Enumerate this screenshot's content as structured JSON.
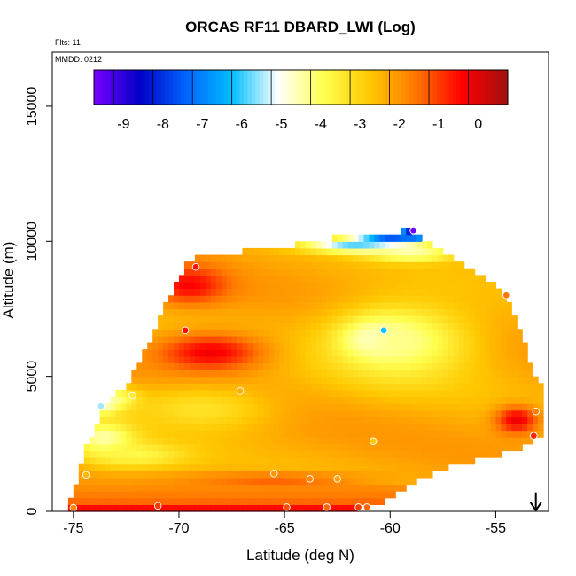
{
  "chart_data": {
    "type": "heatmap",
    "title": "ORCAS RF11 DBARD_LWI (Log)",
    "annotations": {
      "flights": "Flts: 11",
      "date": "MMDD: 0212"
    },
    "xlabel": "Latitude (deg N)",
    "ylabel": "Altitude (m)",
    "xlim": [
      -76,
      -52.5
    ],
    "ylim": [
      0,
      17000
    ],
    "x_ticks": [
      -75,
      -70,
      -65,
      -60,
      -55
    ],
    "x_tick_labels": [
      "-75",
      "-70",
      "-65",
      "-60",
      "-55"
    ],
    "y_ticks": [
      0,
      5000,
      10000,
      15000
    ],
    "y_tick_labels": [
      "0",
      "5000",
      "10000",
      "15000"
    ],
    "colorbar": {
      "range": [
        -9.75,
        0.75
      ],
      "ticks": [
        -9,
        -8,
        -7,
        -6,
        -5,
        -4,
        -3,
        -2,
        -1,
        0
      ],
      "tick_labels": [
        "-9",
        "-8",
        "-7",
        "-6",
        "-5",
        "-4",
        "-3",
        "-2",
        "-1",
        "0"
      ],
      "colors": [
        "#7a00ff",
        "#0000c8",
        "#0064ff",
        "#00beff",
        "#ffffff",
        "#ffff50",
        "#ffc800",
        "#ff7800",
        "#ff0000",
        "#a01010"
      ]
    },
    "field_columns": [
      {
        "x": -75.0,
        "bottom": 0,
        "top": 300
      },
      {
        "x": -74.5,
        "bottom": 0,
        "top": 2200
      },
      {
        "x": -74.0,
        "bottom": 0,
        "top": 2900
      },
      {
        "x": -73.5,
        "bottom": 0,
        "top": 3900
      },
      {
        "x": -73.0,
        "bottom": 0,
        "top": 4200
      },
      {
        "x": -72.5,
        "bottom": 0,
        "top": 4500
      },
      {
        "x": -72.0,
        "bottom": 0,
        "top": 5300
      },
      {
        "x": -71.5,
        "bottom": 0,
        "top": 6000
      },
      {
        "x": -71.0,
        "bottom": 0,
        "top": 7000
      },
      {
        "x": -70.5,
        "bottom": 0,
        "top": 7800
      },
      {
        "x": -70.0,
        "bottom": 0,
        "top": 8500
      },
      {
        "x": -69.5,
        "bottom": 0,
        "top": 9200
      },
      {
        "x": -69.0,
        "bottom": 0,
        "top": 9400
      },
      {
        "x": -68.0,
        "bottom": 0,
        "top": 9500
      },
      {
        "x": -67.0,
        "bottom": 0,
        "top": 9500
      },
      {
        "x": -66.0,
        "bottom": 0,
        "top": 9600
      },
      {
        "x": -65.0,
        "bottom": 0,
        "top": 9700
      },
      {
        "x": -64.0,
        "bottom": 100,
        "top": 9800
      },
      {
        "x": -63.0,
        "bottom": 100,
        "top": 9900
      },
      {
        "x": -62.0,
        "bottom": 200,
        "top": 10200
      },
      {
        "x": -61.0,
        "bottom": 300,
        "top": 10200
      },
      {
        "x": -60.0,
        "bottom": 600,
        "top": 10250
      },
      {
        "x": -59.5,
        "bottom": 900,
        "top": 10250
      },
      {
        "x": -59.0,
        "bottom": 1200,
        "top": 10300
      },
      {
        "x": -58.0,
        "bottom": 1500,
        "top": 9700
      },
      {
        "x": -57.0,
        "bottom": 1800,
        "top": 9300
      },
      {
        "x": -56.0,
        "bottom": 2000,
        "top": 8800
      },
      {
        "x": -55.0,
        "bottom": 2200,
        "top": 8200
      },
      {
        "x": -54.5,
        "bottom": 2300,
        "top": 7800
      },
      {
        "x": -54.0,
        "bottom": 2400,
        "top": 7000
      },
      {
        "x": -53.5,
        "bottom": 2600,
        "top": 5800
      },
      {
        "x": -53.0,
        "bottom": 2800,
        "top": 4600
      }
    ],
    "features": [
      {
        "x": -58.8,
        "y": 10350,
        "sx": 0.8,
        "sy": 300,
        "v": -9.4
      },
      {
        "x": -60.0,
        "y": 10150,
        "sx": 1.6,
        "sy": 220,
        "v": -8.1
      },
      {
        "x": -61.5,
        "y": 9850,
        "sx": 2.5,
        "sy": 250,
        "v": -6.0
      },
      {
        "x": -59.0,
        "y": 9550,
        "sx": 2.2,
        "sy": 300,
        "v": -4.6
      },
      {
        "x": -60.5,
        "y": 6400,
        "sx": 1.5,
        "sy": 650,
        "v": -6.4
      },
      {
        "x": -59.5,
        "y": 6300,
        "sx": 3.5,
        "sy": 1500,
        "v": -4.3
      },
      {
        "x": -73.6,
        "y": 3950,
        "sx": 0.6,
        "sy": 300,
        "v": -6.0
      },
      {
        "x": -73.2,
        "y": 4150,
        "sx": 1.3,
        "sy": 450,
        "v": -4.8
      },
      {
        "x": -73.5,
        "y": 2700,
        "sx": 1.5,
        "sy": 700,
        "v": -4.7
      },
      {
        "x": -72.0,
        "y": 2100,
        "sx": 2.5,
        "sy": 500,
        "v": -3.8
      },
      {
        "x": -69.0,
        "y": 3800,
        "sx": 3.5,
        "sy": 900,
        "v": -3.3
      },
      {
        "x": -68.5,
        "y": 5900,
        "sx": 2.5,
        "sy": 700,
        "v": -0.3
      },
      {
        "x": -69.5,
        "y": 8400,
        "sx": 1.8,
        "sy": 700,
        "v": -0.4
      },
      {
        "x": -54.0,
        "y": 3400,
        "sx": 1.0,
        "sy": 500,
        "v": -0.2
      },
      {
        "x": -65.5,
        "y": 1200,
        "sx": 4.5,
        "sy": 250,
        "v": -1.3
      }
    ],
    "flight_points": [
      {
        "x": -75.0,
        "y": 130,
        "v": -1.8
      },
      {
        "x": -74.4,
        "y": 1350,
        "v": -2.5
      },
      {
        "x": -73.7,
        "y": 3900,
        "v": -5.5
      },
      {
        "x": -72.2,
        "y": 4300,
        "v": -3.5
      },
      {
        "x": -71.0,
        "y": 200,
        "v": -1.0
      },
      {
        "x": -69.7,
        "y": 6700,
        "v": -0.5
      },
      {
        "x": -69.2,
        "y": 9050,
        "v": -0.6
      },
      {
        "x": -67.1,
        "y": 4450,
        "v": -2.4
      },
      {
        "x": -65.5,
        "y": 1400,
        "v": -2.0
      },
      {
        "x": -64.9,
        "y": 150,
        "v": -1.2
      },
      {
        "x": -63.8,
        "y": 1200,
        "v": -1.8
      },
      {
        "x": -63.0,
        "y": 150,
        "v": -1.4
      },
      {
        "x": -62.5,
        "y": 1200,
        "v": -2.2
      },
      {
        "x": -61.5,
        "y": 150,
        "v": -1.0
      },
      {
        "x": -61.1,
        "y": 150,
        "v": -1.4
      },
      {
        "x": -60.8,
        "y": 2600,
        "v": -2.8
      },
      {
        "x": -60.3,
        "y": 6700,
        "v": -6.2
      },
      {
        "x": -58.9,
        "y": 10400,
        "v": -9.6
      },
      {
        "x": -54.5,
        "y": 8000,
        "v": -1.6
      },
      {
        "x": -53.1,
        "y": 3700,
        "v": -1.7
      },
      {
        "x": -53.2,
        "y": 2800,
        "v": -0.8
      }
    ],
    "marker": {
      "type": "arrow-down",
      "x": -53.1,
      "y_top": 700,
      "y_bottom": 0
    }
  }
}
